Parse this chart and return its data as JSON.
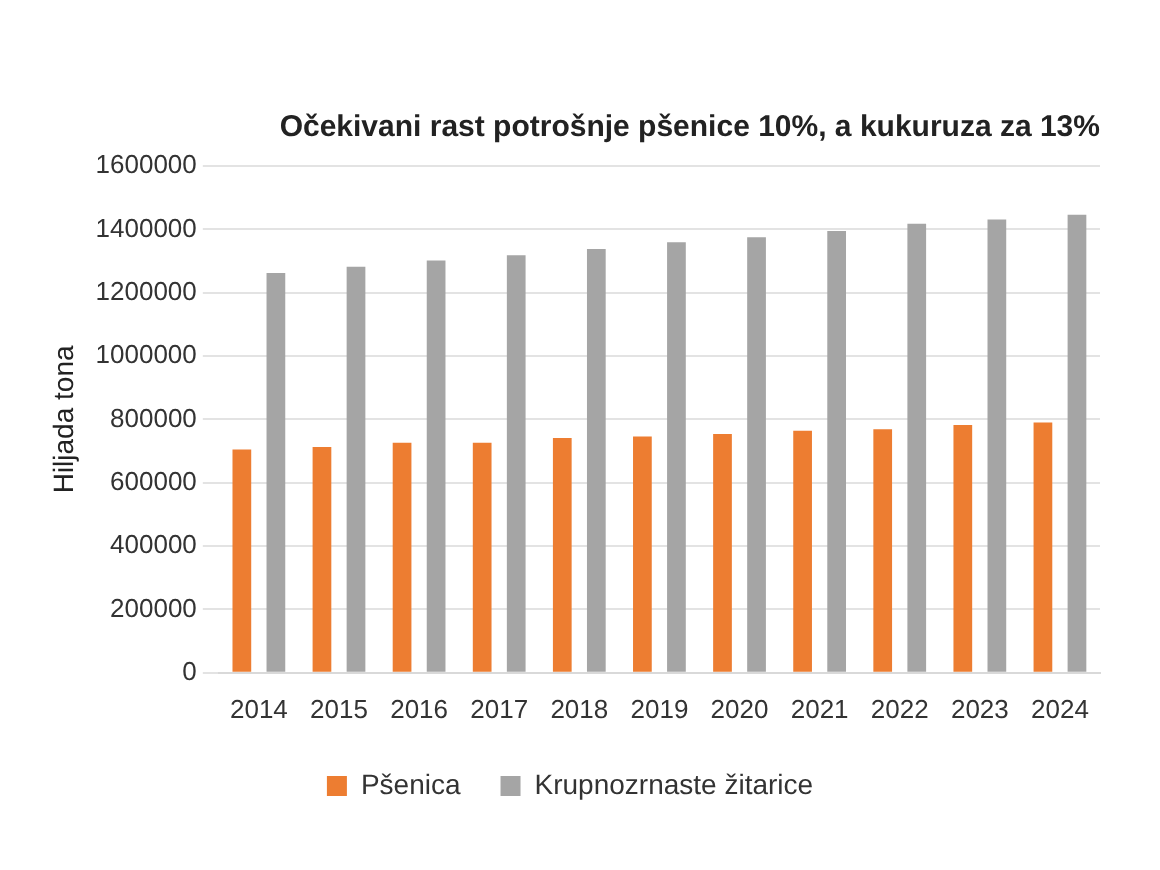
{
  "chart_data": {
    "type": "bar",
    "title": "Očekivani rast potrošnje pšenice 10%, a kukuruza za 13%",
    "ylabel": "Hiljada tona",
    "categories": [
      "2014",
      "2015",
      "2016",
      "2017",
      "2018",
      "2019",
      "2020",
      "2021",
      "2022",
      "2023",
      "2024"
    ],
    "series": [
      {
        "name": "Pšenica",
        "color": "#ed7d31",
        "values": [
          705000,
          713000,
          726000,
          726000,
          741000,
          746000,
          754000,
          764000,
          769000,
          782000,
          790000
        ]
      },
      {
        "name": "Krupnozrnaste žitarice",
        "color": "#a5a5a5",
        "values": [
          1262000,
          1282000,
          1302000,
          1318000,
          1338000,
          1359000,
          1375000,
          1395000,
          1418000,
          1431000,
          1446000
        ]
      }
    ],
    "ylim": [
      0,
      1600000
    ],
    "yticks": [
      0,
      200000,
      400000,
      600000,
      800000,
      1000000,
      1200000,
      1400000,
      1600000
    ],
    "grid": "y",
    "legend": "bottom"
  }
}
